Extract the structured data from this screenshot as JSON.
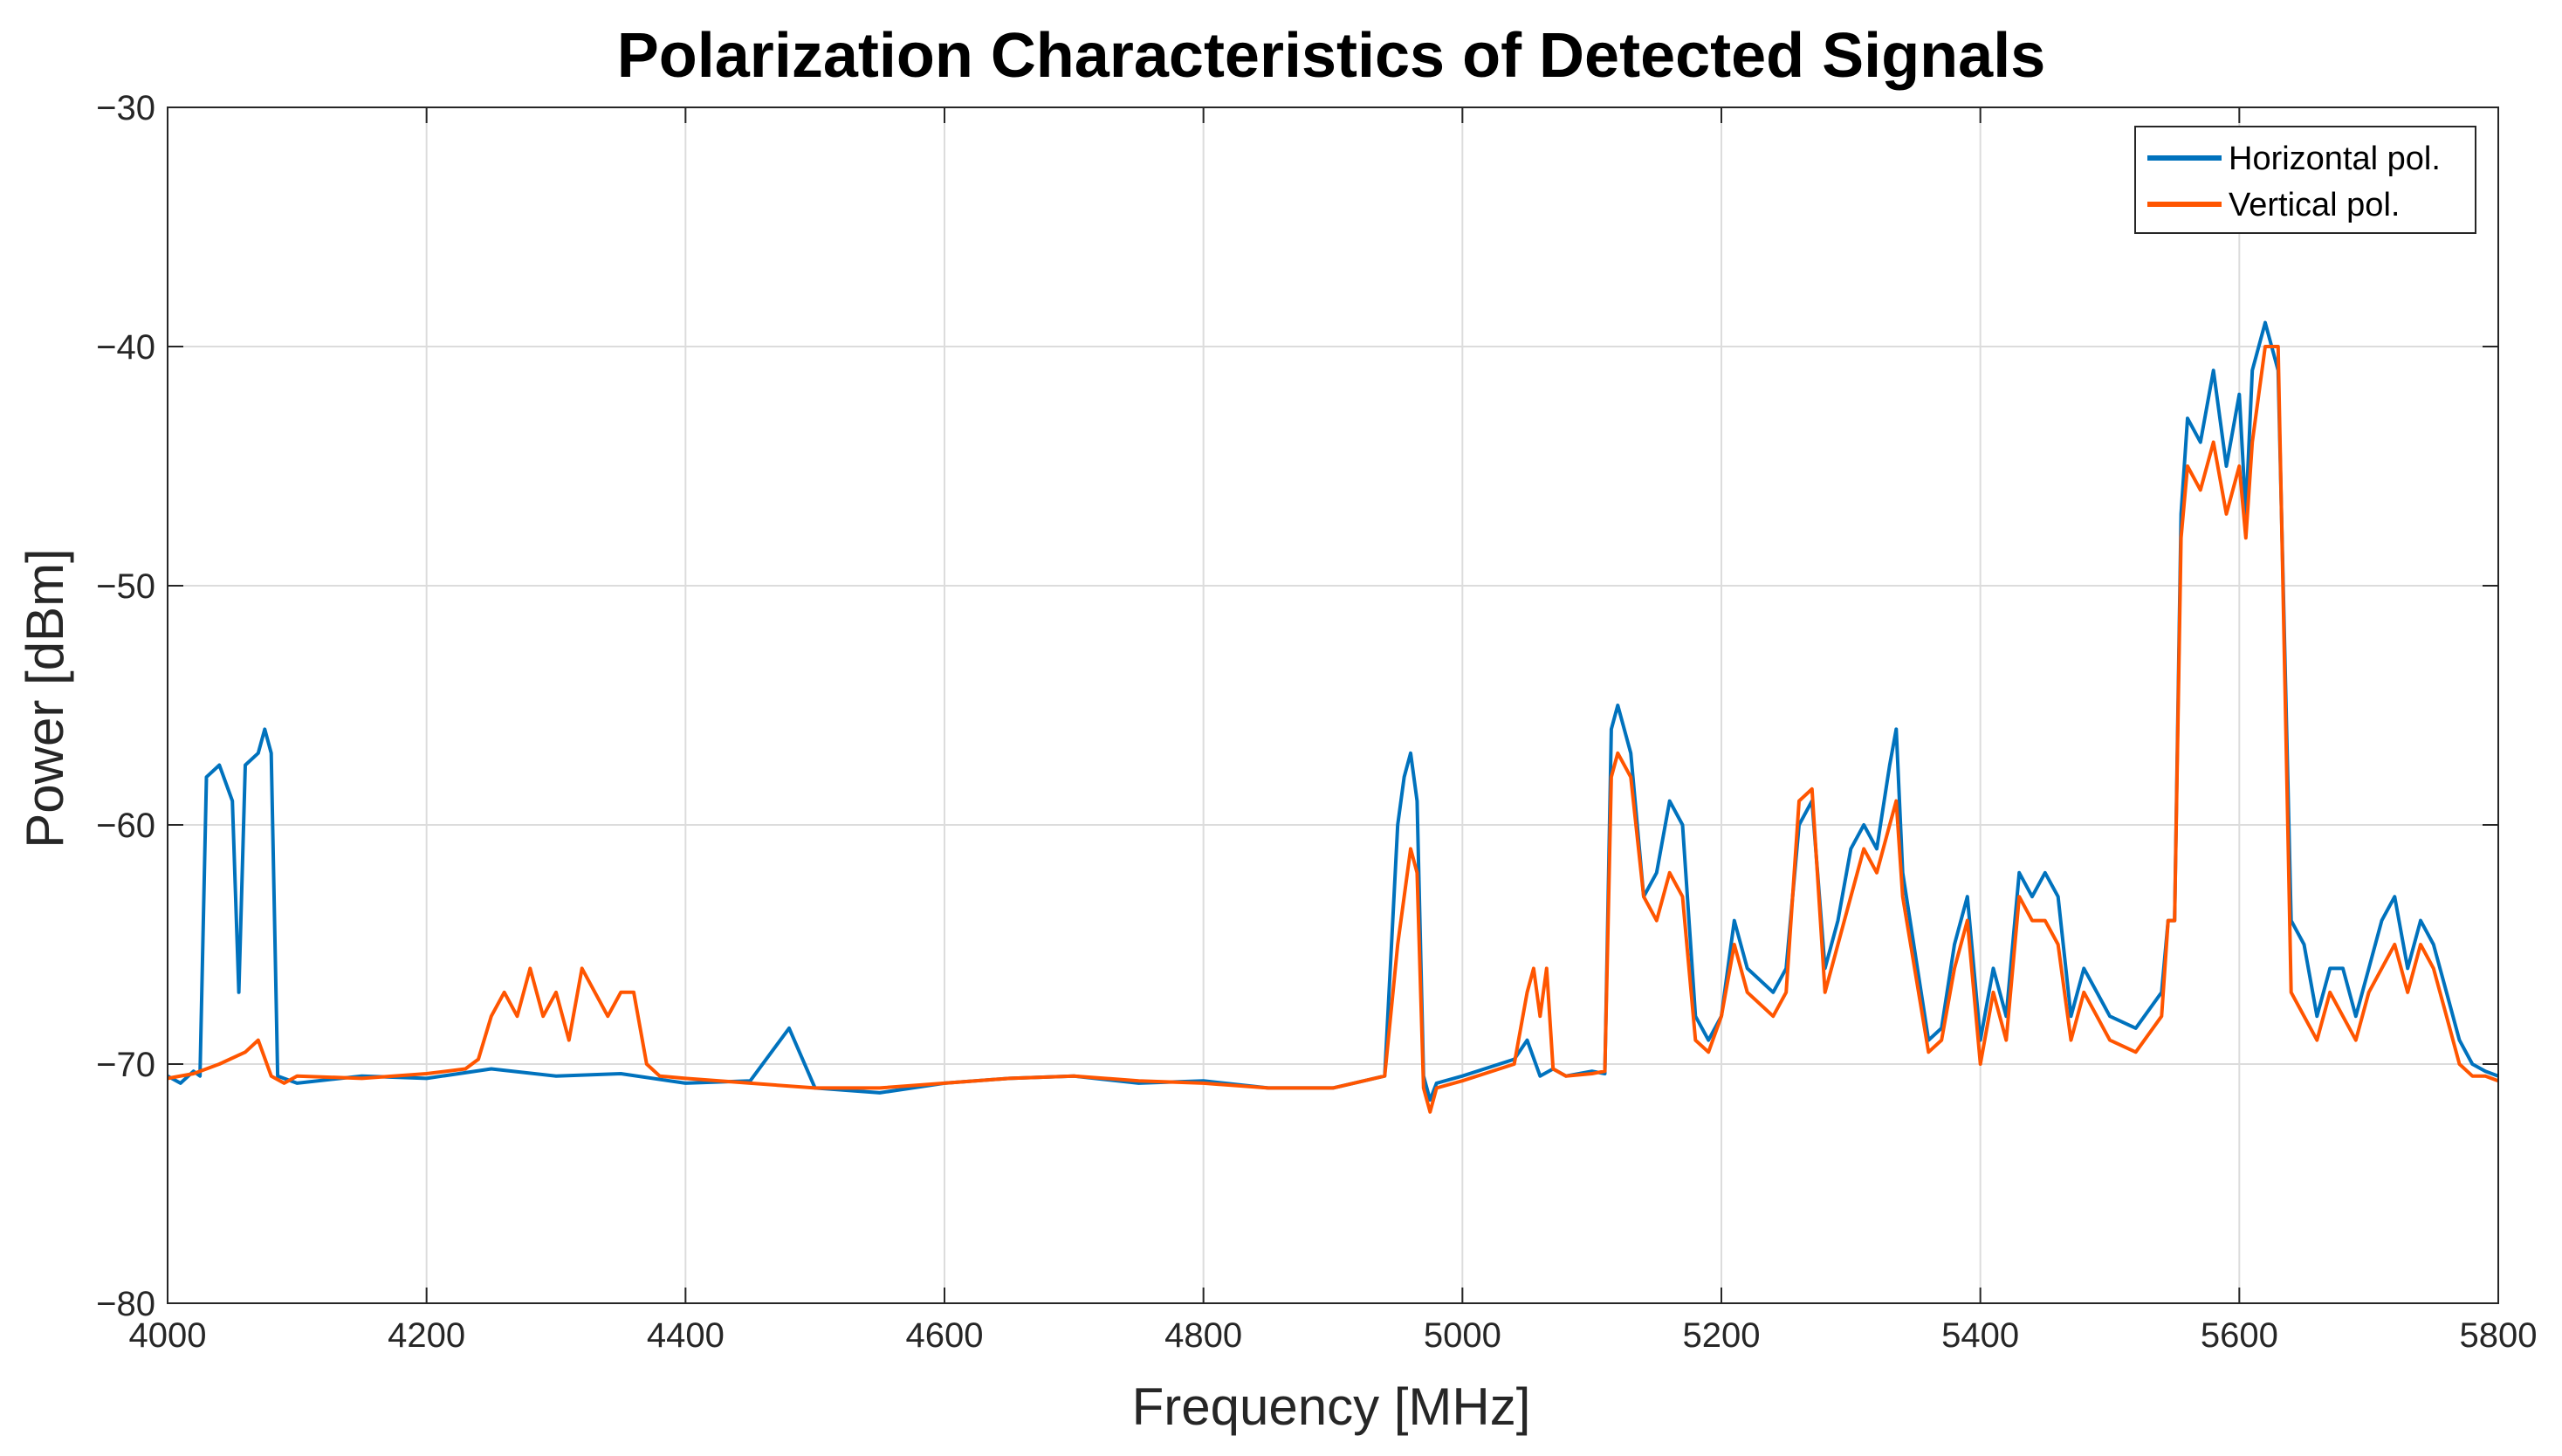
{
  "chart_data": {
    "type": "line",
    "title": "Polarization Characteristics of Detected Signals",
    "xlabel": "Frequency [MHz]",
    "ylabel": "Power [dBm]",
    "xlim": [
      4000,
      5800
    ],
    "ylim": [
      -80,
      -30
    ],
    "xticks": [
      4000,
      4200,
      4400,
      4600,
      4800,
      5000,
      5200,
      5400,
      5600,
      5800
    ],
    "yticks": [
      -80,
      -70,
      -60,
      -50,
      -40,
      -30
    ],
    "xtick_labels": [
      "4000",
      "4200",
      "4400",
      "4600",
      "4800",
      "5000",
      "5200",
      "5400",
      "5600",
      "5800"
    ],
    "ytick_labels": [
      "−80",
      "−70",
      "−60",
      "−50",
      "−40",
      "−30"
    ],
    "grid": true,
    "legend_position": "top-right",
    "series": [
      {
        "name": "Horizontal pol.",
        "color": "#0072BD",
        "x": [
          4000,
          4010,
          4020,
          4025,
          4030,
          4040,
          4050,
          4055,
          4060,
          4070,
          4075,
          4080,
          4085,
          4100,
          4150,
          4200,
          4250,
          4300,
          4350,
          4400,
          4450,
          4480,
          4500,
          4550,
          4600,
          4650,
          4700,
          4750,
          4800,
          4850,
          4900,
          4940,
          4950,
          4955,
          4960,
          4965,
          4970,
          4975,
          4980,
          5000,
          5040,
          5050,
          5060,
          5070,
          5080,
          5100,
          5110,
          5115,
          5120,
          5130,
          5140,
          5150,
          5160,
          5170,
          5180,
          5190,
          5200,
          5210,
          5220,
          5240,
          5250,
          5260,
          5270,
          5280,
          5290,
          5300,
          5310,
          5320,
          5330,
          5335,
          5340,
          5360,
          5370,
          5380,
          5390,
          5400,
          5410,
          5420,
          5430,
          5440,
          5450,
          5460,
          5470,
          5480,
          5490,
          5500,
          5520,
          5540,
          5545,
          5550,
          5555,
          5560,
          5570,
          5580,
          5590,
          5600,
          5605,
          5610,
          5620,
          5630,
          5640,
          5650,
          5660,
          5670,
          5680,
          5690,
          5700,
          5710,
          5720,
          5730,
          5740,
          5750,
          5760,
          5770,
          5780,
          5790,
          5800
        ],
        "y": [
          -70.5,
          -70.8,
          -70.3,
          -70.5,
          -58,
          -57.5,
          -59,
          -67,
          -57.5,
          -57,
          -56,
          -57,
          -70.5,
          -70.8,
          -70.5,
          -70.6,
          -70.2,
          -70.5,
          -70.4,
          -70.8,
          -70.7,
          -68.5,
          -71,
          -71.2,
          -70.8,
          -70.6,
          -70.5,
          -70.8,
          -70.7,
          -71,
          -71,
          -70.5,
          -60,
          -58,
          -57,
          -59,
          -70.5,
          -71.5,
          -70.8,
          -70.5,
          -69.8,
          -69,
          -70.5,
          -70.2,
          -70.5,
          -70.3,
          -70.4,
          -56,
          -55,
          -57,
          -63,
          -62,
          -59,
          -60,
          -68,
          -69,
          -68,
          -64,
          -66,
          -67,
          -66,
          -60,
          -59,
          -66,
          -64,
          -61,
          -60,
          -61,
          -57.5,
          -56,
          -62,
          -69,
          -68.5,
          -65,
          -63,
          -69,
          -66,
          -68,
          -62,
          -63,
          -62,
          -63,
          -68,
          -66,
          -67,
          -68,
          -68.5,
          -67,
          -64,
          -64,
          -47,
          -43,
          -44,
          -41,
          -45,
          -42,
          -47,
          -41,
          -39,
          -41,
          -64,
          -65,
          -68,
          -66,
          -66,
          -68,
          -66,
          -64,
          -63,
          -66,
          -64,
          -65,
          -67,
          -69,
          -70,
          -70.3,
          -70.5
        ]
      },
      {
        "name": "Vertical pol.",
        "color": "#FF5500",
        "x": [
          4000,
          4020,
          4040,
          4060,
          4070,
          4080,
          4090,
          4100,
          4150,
          4200,
          4230,
          4240,
          4250,
          4260,
          4270,
          4280,
          4290,
          4300,
          4310,
          4320,
          4330,
          4340,
          4350,
          4360,
          4370,
          4380,
          4400,
          4450,
          4500,
          4550,
          4600,
          4650,
          4700,
          4750,
          4800,
          4850,
          4900,
          4940,
          4950,
          4955,
          4960,
          4965,
          4970,
          4975,
          4980,
          5000,
          5040,
          5050,
          5055,
          5060,
          5065,
          5070,
          5080,
          5100,
          5110,
          5115,
          5120,
          5130,
          5140,
          5150,
          5160,
          5170,
          5180,
          5190,
          5200,
          5210,
          5220,
          5240,
          5250,
          5260,
          5270,
          5280,
          5290,
          5300,
          5310,
          5320,
          5330,
          5335,
          5340,
          5360,
          5370,
          5380,
          5390,
          5400,
          5410,
          5420,
          5430,
          5440,
          5450,
          5460,
          5470,
          5480,
          5490,
          5500,
          5520,
          5540,
          5545,
          5550,
          5555,
          5560,
          5570,
          5580,
          5590,
          5600,
          5605,
          5610,
          5620,
          5630,
          5640,
          5650,
          5660,
          5670,
          5680,
          5690,
          5700,
          5710,
          5720,
          5730,
          5740,
          5750,
          5760,
          5770,
          5780,
          5790,
          5800
        ],
        "y": [
          -70.6,
          -70.4,
          -70,
          -69.5,
          -69,
          -70.5,
          -70.8,
          -70.5,
          -70.6,
          -70.4,
          -70.2,
          -69.8,
          -68,
          -67,
          -68,
          -66,
          -68,
          -67,
          -69,
          -66,
          -67,
          -68,
          -67,
          -67,
          -70,
          -70.5,
          -70.6,
          -70.8,
          -71,
          -71,
          -70.8,
          -70.6,
          -70.5,
          -70.7,
          -70.8,
          -71,
          -71,
          -70.5,
          -65,
          -63,
          -61,
          -62,
          -71,
          -72,
          -71,
          -70.7,
          -70,
          -67,
          -66,
          -68,
          -66,
          -70.2,
          -70.5,
          -70.4,
          -70.3,
          -58,
          -57,
          -58,
          -63,
          -64,
          -62,
          -63,
          -69,
          -69.5,
          -68,
          -65,
          -67,
          -68,
          -67,
          -59,
          -58.5,
          -67,
          -65,
          -63,
          -61,
          -62,
          -60,
          -59,
          -63,
          -69.5,
          -69,
          -66,
          -64,
          -70,
          -67,
          -69,
          -63,
          -64,
          -64,
          -65,
          -69,
          -67,
          -68,
          -69,
          -69.5,
          -68,
          -64,
          -64,
          -48,
          -45,
          -46,
          -44,
          -47,
          -45,
          -48,
          -44,
          -40,
          -40,
          -67,
          -68,
          -69,
          -67,
          -68,
          -69,
          -67,
          -66,
          -65,
          -67,
          -65,
          -66,
          -68,
          -70,
          -70.5,
          -70.5,
          -70.7
        ]
      }
    ]
  }
}
